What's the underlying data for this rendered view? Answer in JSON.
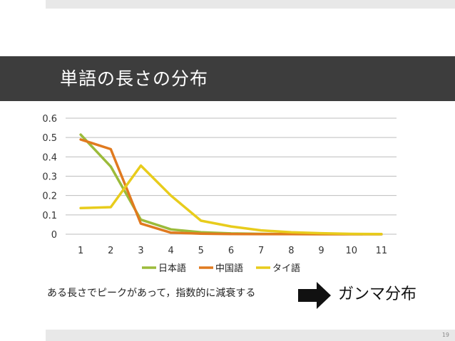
{
  "slide": {
    "title": "単語の長さの分布",
    "caption": "ある長さでピークがあって，指数的に減衰する",
    "result": "ガンマ分布",
    "page_number": "19"
  },
  "chart_data": {
    "type": "line",
    "categories": [
      "1",
      "2",
      "3",
      "4",
      "5",
      "6",
      "7",
      "8",
      "9",
      "10",
      "11"
    ],
    "ylim": [
      0,
      0.6
    ],
    "yticks": [
      "0",
      "0.1",
      "0.2",
      "0.3",
      "0.4",
      "0.5",
      "0.6"
    ],
    "grid": true,
    "legend_position": "bottom",
    "series": [
      {
        "name": "日本語",
        "color": "#9bbb3a",
        "values": [
          0.515,
          0.35,
          0.075,
          0.025,
          0.01,
          0.004,
          0.002,
          0.001,
          0.0005,
          0.0002,
          0.0001
        ]
      },
      {
        "name": "中国語",
        "color": "#e07a1f",
        "values": [
          0.49,
          0.44,
          0.055,
          0.008,
          0.003,
          0.001,
          0.0005,
          0.0002,
          0.0001,
          0.0001,
          0.0
        ]
      },
      {
        "name": "タイ語",
        "color": "#e8cc1c",
        "values": [
          0.135,
          0.14,
          0.355,
          0.2,
          0.07,
          0.04,
          0.02,
          0.01,
          0.005,
          0.002,
          0.001
        ]
      }
    ]
  }
}
